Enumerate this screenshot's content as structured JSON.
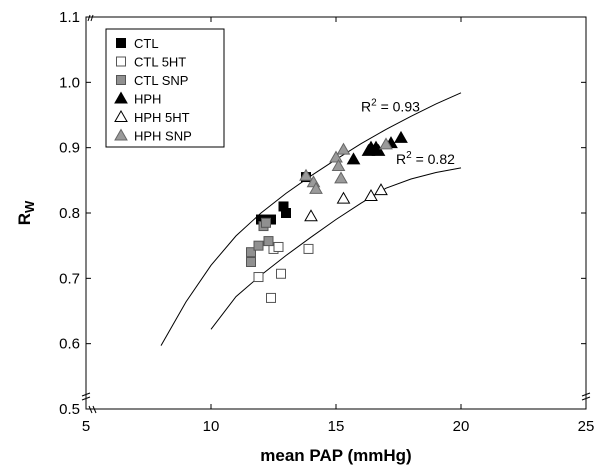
{
  "chart_data": {
    "type": "scatter",
    "title": "",
    "xlabel": "mean PAP (mmHg)",
    "ylabel": "R",
    "ylabel_subscript": "W",
    "xlim": [
      5,
      25
    ],
    "ylim": [
      0.5,
      1.1
    ],
    "xticks": [
      "5",
      "10",
      "15",
      "20",
      "25"
    ],
    "yticks": [
      "0.5",
      "0.6",
      "0.7",
      "0.8",
      "0.9",
      "1.0",
      "1.1"
    ],
    "grid": false,
    "legend_position": "top-left",
    "series": [
      {
        "name": "CTL",
        "marker": "square",
        "fill": "#000000",
        "stroke": "#000000",
        "points": [
          [
            12.0,
            0.79
          ],
          [
            12.4,
            0.79
          ],
          [
            12.9,
            0.81
          ],
          [
            13.0,
            0.8
          ],
          [
            13.8,
            0.855
          ]
        ]
      },
      {
        "name": "CTL 5HT",
        "marker": "square",
        "fill": "#ffffff",
        "stroke": "#555555",
        "points": [
          [
            11.9,
            0.702
          ],
          [
            12.4,
            0.67
          ],
          [
            12.5,
            0.745
          ],
          [
            12.7,
            0.748
          ],
          [
            12.8,
            0.707
          ],
          [
            13.9,
            0.745
          ]
        ]
      },
      {
        "name": "CTL SNP",
        "marker": "square",
        "fill": "#909090",
        "stroke": "#555555",
        "points": [
          [
            11.6,
            0.725
          ],
          [
            11.6,
            0.74
          ],
          [
            11.9,
            0.75
          ],
          [
            12.1,
            0.78
          ],
          [
            12.3,
            0.757
          ],
          [
            12.2,
            0.785
          ]
        ]
      },
      {
        "name": "HPH",
        "marker": "triangle",
        "fill": "#000000",
        "stroke": "#000000",
        "points": [
          [
            15.7,
            0.882
          ],
          [
            16.3,
            0.895
          ],
          [
            16.4,
            0.9
          ],
          [
            16.6,
            0.9
          ],
          [
            16.7,
            0.895
          ],
          [
            17.2,
            0.907
          ],
          [
            17.6,
            0.915
          ]
        ]
      },
      {
        "name": "HPH 5HT",
        "marker": "triangle",
        "fill": "#ffffff",
        "stroke": "#000000",
        "points": [
          [
            14.0,
            0.795
          ],
          [
            15.3,
            0.822
          ],
          [
            16.4,
            0.826
          ],
          [
            16.8,
            0.835
          ]
        ]
      },
      {
        "name": "HPH SNP",
        "marker": "triangle",
        "fill": "#9a9a9a",
        "stroke": "#666666",
        "points": [
          [
            13.8,
            0.857
          ],
          [
            14.1,
            0.847
          ],
          [
            14.2,
            0.837
          ],
          [
            15.0,
            0.885
          ],
          [
            15.1,
            0.872
          ],
          [
            15.2,
            0.853
          ],
          [
            15.3,
            0.897
          ],
          [
            17.0,
            0.905
          ]
        ]
      }
    ],
    "fits": [
      {
        "label_prefix": "R",
        "label_exp": "2",
        "label_suffix": " = 0.93",
        "label_at": [
          16.0,
          0.955
        ],
        "points": [
          [
            8,
            0.597
          ],
          [
            9,
            0.664
          ],
          [
            10,
            0.72
          ],
          [
            11,
            0.765
          ],
          [
            12,
            0.8
          ],
          [
            13,
            0.83
          ],
          [
            14,
            0.857
          ],
          [
            15,
            0.882
          ],
          [
            16,
            0.906
          ],
          [
            17,
            0.928
          ],
          [
            18,
            0.948
          ],
          [
            19,
            0.967
          ],
          [
            20,
            0.984
          ]
        ]
      },
      {
        "label_prefix": "R",
        "label_exp": "2",
        "label_suffix": " = 0.82",
        "label_at": [
          17.4,
          0.875
        ],
        "points": [
          [
            10,
            0.622
          ],
          [
            11,
            0.672
          ],
          [
            12,
            0.705
          ],
          [
            13,
            0.735
          ],
          [
            14,
            0.763
          ],
          [
            15,
            0.79
          ],
          [
            16,
            0.815
          ],
          [
            17,
            0.838
          ],
          [
            18,
            0.852
          ],
          [
            19,
            0.862
          ],
          [
            20,
            0.869
          ]
        ]
      }
    ]
  }
}
